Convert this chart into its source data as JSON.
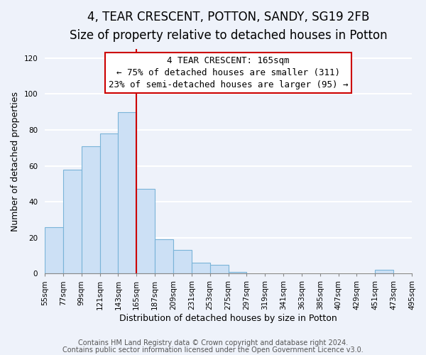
{
  "title": "4, TEAR CRESCENT, POTTON, SANDY, SG19 2FB",
  "subtitle": "Size of property relative to detached houses in Potton",
  "xlabel": "Distribution of detached houses by size in Potton",
  "ylabel": "Number of detached properties",
  "heights": [
    26,
    58,
    71,
    78,
    90,
    47,
    19,
    13,
    6,
    5,
    1,
    0,
    0,
    0,
    0,
    0,
    0,
    0,
    2,
    0
  ],
  "bin_labels": [
    "55sqm",
    "77sqm",
    "99sqm",
    "121sqm",
    "143sqm",
    "165sqm",
    "187sqm",
    "209sqm",
    "231sqm",
    "253sqm",
    "275sqm",
    "297sqm",
    "319sqm",
    "341sqm",
    "363sqm",
    "385sqm",
    "407sqm",
    "429sqm",
    "451sqm",
    "473sqm",
    "495sqm"
  ],
  "bar_color": "#cce0f5",
  "bar_edge_color": "#7ab4d8",
  "vline_x_index": 5,
  "vline_color": "#cc0000",
  "annotation_line1": "4 TEAR CRESCENT: 165sqm",
  "annotation_line2": "← 75% of detached houses are smaller (311)",
  "annotation_line3": "23% of semi-detached houses are larger (95) →",
  "annotation_box_color": "#ffffff",
  "annotation_box_edge_color": "#cc0000",
  "ylim": [
    0,
    125
  ],
  "yticks": [
    0,
    20,
    40,
    60,
    80,
    100,
    120
  ],
  "footer_line1": "Contains HM Land Registry data © Crown copyright and database right 2024.",
  "footer_line2": "Contains public sector information licensed under the Open Government Licence v3.0.",
  "background_color": "#eef2fa",
  "plot_background_color": "#eef2fa",
  "title_fontsize": 12,
  "subtitle_fontsize": 10,
  "xlabel_fontsize": 9,
  "ylabel_fontsize": 9,
  "tick_fontsize": 7.5,
  "footer_fontsize": 7,
  "annotation_fontsize": 9
}
